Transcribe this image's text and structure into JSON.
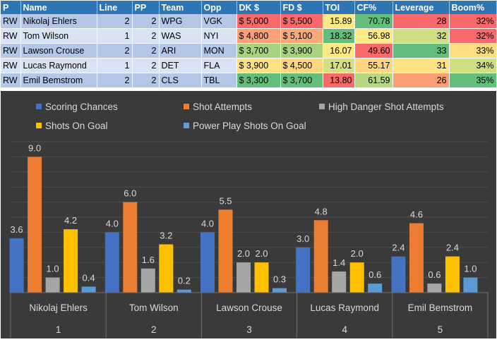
{
  "table": {
    "headers": [
      "P",
      "Name",
      "Line",
      "PP",
      "Team",
      "Opp",
      "DK $",
      "FD $",
      "TOI",
      "CF%",
      "Leverage",
      "Boom%"
    ],
    "rows": [
      {
        "pos": "RW",
        "name": "Nikolaj Ehlers",
        "line": "2",
        "pp": "2",
        "team": "WPG",
        "opp": "VGK",
        "dk": "$ 5,000",
        "fd": "$ 5,500",
        "toi": "15.89",
        "cf": "70.78",
        "leverage": "28",
        "boom": "32%",
        "colors": {
          "dk": "#f8696b",
          "fd": "#f8696b",
          "toi": "#ffeb84",
          "cf": "#63be7b",
          "leverage": "#f8696b",
          "boom": "#f8696b"
        }
      },
      {
        "pos": "RW",
        "name": "Tom Wilson",
        "line": "1",
        "pp": "2",
        "team": "WAS",
        "opp": "NYI",
        "dk": "$ 4,800",
        "fd": "$ 5,100",
        "toi": "18.32",
        "cf": "56.98",
        "leverage": "32",
        "boom": "32%",
        "colors": {
          "dk": "#fba077",
          "fd": "#fbaa77",
          "toi": "#63be7b",
          "cf": "#ffeb84",
          "leverage": "#d0de82",
          "boom": "#f8696b"
        }
      },
      {
        "pos": "RW",
        "name": "Lawson Crouse",
        "line": "2",
        "pp": "2",
        "team": "ARI",
        "opp": "MON",
        "dk": "$ 3,700",
        "fd": "$ 3,900",
        "toi": "16.07",
        "cf": "49.60",
        "leverage": "33",
        "boom": "33%",
        "colors": {
          "dk": "#a9d27f",
          "fd": "#a9d27f",
          "toi": "#fee983",
          "cf": "#f8696b",
          "leverage": "#63be7b",
          "boom": "#fedc81"
        }
      },
      {
        "pos": "RW",
        "name": "Lucas Raymond",
        "line": "1",
        "pp": "2",
        "team": "DET",
        "opp": "FLA",
        "dk": "$ 3,900",
        "fd": "$ 4,500",
        "toi": "17.01",
        "cf": "55.17",
        "leverage": "31",
        "boom": "34%",
        "colors": {
          "dk": "#ffe082",
          "fd": "#fed680",
          "toi": "#d5e082",
          "cf": "#fed680",
          "leverage": "#ffe383",
          "boom": "#d0de82"
        }
      },
      {
        "pos": "RW",
        "name": "Emil Bemstrom",
        "line": "2",
        "pp": "2",
        "team": "CLS",
        "opp": "TBL",
        "dk": "$ 3,300",
        "fd": "$ 3,700",
        "toi": "13.80",
        "cf": "61.59",
        "leverage": "26",
        "boom": "35%",
        "colors": {
          "dk": "#63be7b",
          "fd": "#63be7b",
          "toi": "#f8696b",
          "cf": "#b9d780",
          "leverage": "#fa9e75",
          "boom": "#63be7b"
        }
      }
    ]
  },
  "chart_data": {
    "type": "bar",
    "title": "",
    "legend_position": "top",
    "categories": [
      {
        "name": "Nikolaj Ehlers",
        "index": "1"
      },
      {
        "name": "Tom Wilson",
        "index": "2"
      },
      {
        "name": "Lawson Crouse",
        "index": "3"
      },
      {
        "name": "Lucas Raymond",
        "index": "4"
      },
      {
        "name": "Emil Bemstrom",
        "index": "5"
      }
    ],
    "series": [
      {
        "name": "Scoring Chances",
        "color": "#4472c4",
        "values": [
          3.6,
          4.0,
          4.0,
          3.0,
          2.4
        ]
      },
      {
        "name": "Shot Attempts",
        "color": "#ed7d31",
        "values": [
          9.0,
          6.0,
          5.5,
          4.8,
          4.6
        ]
      },
      {
        "name": "High Danger Shot Attempts",
        "color": "#a5a5a5",
        "values": [
          1.0,
          1.6,
          2.0,
          1.4,
          0.6
        ]
      },
      {
        "name": "Shots On Goal",
        "color": "#ffc000",
        "values": [
          4.2,
          3.2,
          2.0,
          2.0,
          2.4
        ]
      },
      {
        "name": "Power Play Shots On Goal",
        "color": "#5b9bd5",
        "values": [
          0.4,
          0.2,
          0.3,
          0.6,
          1.0
        ]
      }
    ],
    "ylim": [
      0,
      10
    ],
    "grid": true,
    "value_labels": true
  }
}
